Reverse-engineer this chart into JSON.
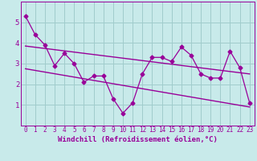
{
  "xlabel": "Windchill (Refroidissement éolien,°C)",
  "background_color": "#c8eaea",
  "grid_color": "#a0cccc",
  "line_color": "#990099",
  "xlim": [
    -0.5,
    23.5
  ],
  "ylim": [
    0,
    6
  ],
  "yticks": [
    1,
    2,
    3,
    4,
    5
  ],
  "xticks": [
    0,
    1,
    2,
    3,
    4,
    5,
    6,
    7,
    8,
    9,
    10,
    11,
    12,
    13,
    14,
    15,
    16,
    17,
    18,
    19,
    20,
    21,
    22,
    23
  ],
  "data_line": [
    5.3,
    4.4,
    3.9,
    2.9,
    3.5,
    3.0,
    2.1,
    2.4,
    2.4,
    1.3,
    0.6,
    1.1,
    2.5,
    3.3,
    3.3,
    3.1,
    3.8,
    3.4,
    2.5,
    2.3,
    2.3,
    3.6,
    2.8,
    1.1
  ],
  "trend_line1_x": [
    0,
    23
  ],
  "trend_line1_y": [
    3.85,
    2.5
  ],
  "trend_line2_x": [
    0,
    23
  ],
  "trend_line2_y": [
    2.75,
    0.9
  ],
  "font_size_xlabel": 6.5,
  "font_size_ytick": 6.5,
  "font_size_xtick": 5.5
}
